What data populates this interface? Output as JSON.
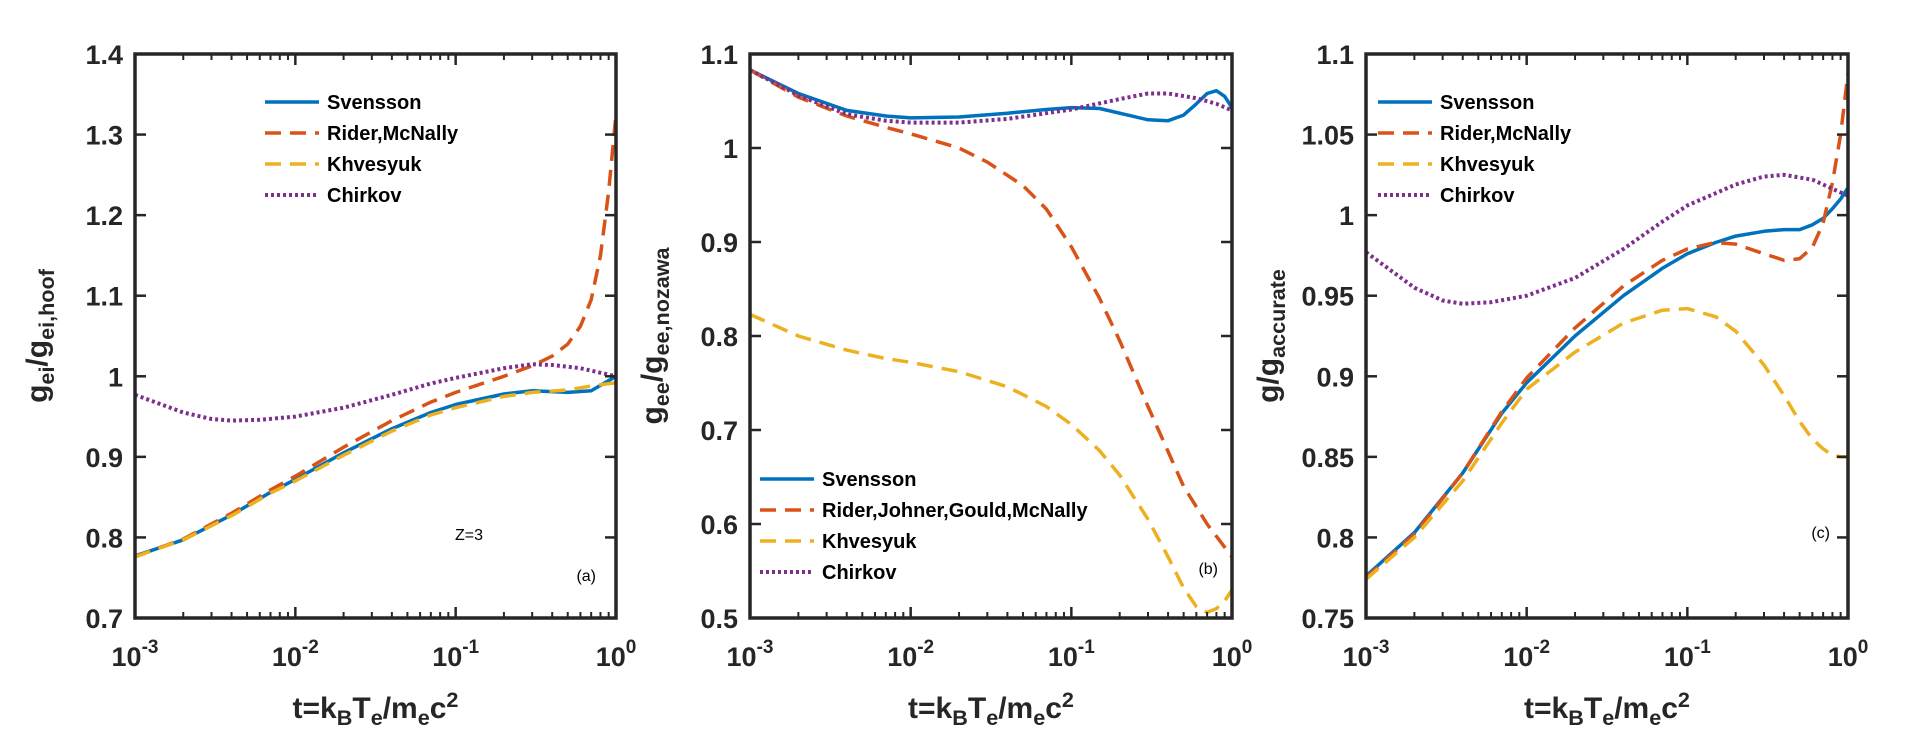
{
  "figure": {
    "colors": {
      "Svensson": "#0072BD",
      "Rider": "#D95319",
      "Khvesyuk": "#EDB120",
      "Chirkov": "#7E2F8E"
    }
  },
  "chart_data": [
    {
      "type": "line",
      "panel": "(a)",
      "xlabel": "t=k_B T_e/m_e c^2",
      "ylabel": "g_ei/g_ei,hoof",
      "xscale": "log",
      "xlim": [
        0.001,
        1
      ],
      "ylim": [
        0.7,
        1.4
      ],
      "xticks": [
        {
          "v": 0.001,
          "base": "10",
          "exp": "-3"
        },
        {
          "v": 0.01,
          "base": "10",
          "exp": "-2"
        },
        {
          "v": 0.1,
          "base": "10",
          "exp": "-1"
        },
        {
          "v": 1,
          "base": "10",
          "exp": "0"
        }
      ],
      "yticks": [
        0.7,
        0.8,
        0.9,
        1.0,
        1.1,
        1.2,
        1.3,
        1.4
      ],
      "ytick_labels": [
        "0.7",
        "0.8",
        "0.9",
        "1",
        "1.1",
        "1.2",
        "1.3",
        "1.4"
      ],
      "annotation": "Z=3",
      "legend": {
        "position": "top-center"
      },
      "series": [
        {
          "name": "Svensson",
          "style": "solid",
          "color": "#0072BD",
          "x": [
            0.001,
            0.002,
            0.004,
            0.007,
            0.01,
            0.02,
            0.04,
            0.07,
            0.1,
            0.2,
            0.3,
            0.5,
            0.7,
            1.0
          ],
          "y": [
            0.777,
            0.797,
            0.828,
            0.856,
            0.872,
            0.905,
            0.935,
            0.955,
            0.965,
            0.978,
            0.982,
            0.98,
            0.982,
            1.0
          ]
        },
        {
          "name": "Rider,McNally",
          "style": "dashed",
          "color": "#D95319",
          "x": [
            0.001,
            0.002,
            0.004,
            0.007,
            0.01,
            0.02,
            0.04,
            0.07,
            0.1,
            0.2,
            0.3,
            0.4,
            0.5,
            0.6,
            0.7,
            0.8,
            0.9,
            1.0
          ],
          "y": [
            0.776,
            0.798,
            0.83,
            0.859,
            0.876,
            0.912,
            0.945,
            0.968,
            0.98,
            1.0,
            1.013,
            1.025,
            1.04,
            1.062,
            1.095,
            1.15,
            1.23,
            1.325
          ]
        },
        {
          "name": "Khvesyuk",
          "style": "dashed",
          "color": "#EDB120",
          "x": [
            0.001,
            0.002,
            0.004,
            0.007,
            0.01,
            0.02,
            0.04,
            0.07,
            0.1,
            0.2,
            0.3,
            0.5,
            0.7,
            1.0
          ],
          "y": [
            0.776,
            0.797,
            0.827,
            0.855,
            0.87,
            0.902,
            0.932,
            0.952,
            0.961,
            0.975,
            0.98,
            0.983,
            0.988,
            0.992
          ]
        },
        {
          "name": "Chirkov",
          "style": "dotted",
          "color": "#7E2F8E",
          "x": [
            0.001,
            0.002,
            0.003,
            0.004,
            0.006,
            0.01,
            0.02,
            0.04,
            0.07,
            0.1,
            0.2,
            0.3,
            0.4,
            0.6,
            1.0
          ],
          "y": [
            0.977,
            0.955,
            0.947,
            0.945,
            0.946,
            0.95,
            0.961,
            0.977,
            0.991,
            0.998,
            1.01,
            1.015,
            1.014,
            1.01,
            1.0
          ]
        }
      ]
    },
    {
      "type": "line",
      "panel": "(b)",
      "xlabel": "t=k_B T_e/m_e c^2",
      "ylabel": "g_ee/g_ee,nozawa",
      "xscale": "log",
      "xlim": [
        0.001,
        1
      ],
      "ylim": [
        0.5,
        1.1
      ],
      "xticks": [
        {
          "v": 0.001,
          "base": "10",
          "exp": "-3"
        },
        {
          "v": 0.01,
          "base": "10",
          "exp": "-2"
        },
        {
          "v": 0.1,
          "base": "10",
          "exp": "-1"
        },
        {
          "v": 1,
          "base": "10",
          "exp": "0"
        }
      ],
      "yticks": [
        0.5,
        0.6,
        0.7,
        0.8,
        0.9,
        1.0,
        1.1
      ],
      "ytick_labels": [
        "0.5",
        "0.6",
        "0.7",
        "0.8",
        "0.9",
        "1",
        "1.1"
      ],
      "legend": {
        "position": "bottom-left"
      },
      "series": [
        {
          "name": "Svensson",
          "style": "solid",
          "color": "#0072BD",
          "x": [
            0.001,
            0.002,
            0.004,
            0.007,
            0.01,
            0.02,
            0.04,
            0.07,
            0.1,
            0.15,
            0.2,
            0.3,
            0.4,
            0.5,
            0.6,
            0.7,
            0.8,
            0.9,
            1.0
          ],
          "y": [
            1.083,
            1.058,
            1.04,
            1.034,
            1.032,
            1.033,
            1.037,
            1.041,
            1.043,
            1.042,
            1.037,
            1.03,
            1.029,
            1.035,
            1.047,
            1.058,
            1.061,
            1.055,
            1.043
          ]
        },
        {
          "name": "Rider,Johner,Gould,McNally",
          "style": "dashed",
          "color": "#D95319",
          "x": [
            0.001,
            0.002,
            0.004,
            0.007,
            0.01,
            0.02,
            0.03,
            0.05,
            0.07,
            0.1,
            0.15,
            0.2,
            0.3,
            0.5,
            0.7,
            1.0
          ],
          "y": [
            1.083,
            1.054,
            1.034,
            1.022,
            1.015,
            1.0,
            0.985,
            0.96,
            0.935,
            0.895,
            0.84,
            0.795,
            0.725,
            0.64,
            0.6,
            0.565
          ]
        },
        {
          "name": "Khvesyuk",
          "style": "dashed",
          "color": "#EDB120",
          "x": [
            0.001,
            0.002,
            0.004,
            0.007,
            0.01,
            0.02,
            0.04,
            0.07,
            0.1,
            0.15,
            0.2,
            0.3,
            0.4,
            0.5,
            0.6,
            0.7,
            0.8,
            0.9,
            1.0
          ],
          "y": [
            0.823,
            0.8,
            0.785,
            0.776,
            0.772,
            0.762,
            0.746,
            0.725,
            0.706,
            0.678,
            0.652,
            0.605,
            0.565,
            0.532,
            0.512,
            0.506,
            0.51,
            0.518,
            0.53
          ]
        },
        {
          "name": "Chirkov",
          "style": "dotted",
          "color": "#7E2F8E",
          "x": [
            0.001,
            0.002,
            0.004,
            0.007,
            0.01,
            0.02,
            0.04,
            0.07,
            0.1,
            0.2,
            0.3,
            0.4,
            0.6,
            0.8,
            1.0
          ],
          "y": [
            1.083,
            1.056,
            1.036,
            1.029,
            1.027,
            1.027,
            1.031,
            1.037,
            1.041,
            1.052,
            1.058,
            1.058,
            1.053,
            1.047,
            1.04
          ]
        }
      ]
    },
    {
      "type": "line",
      "panel": "(c)",
      "xlabel": "t=k_B T_e/m_e c^2",
      "ylabel": "g/g_accurate",
      "xscale": "log",
      "xlim": [
        0.001,
        1
      ],
      "ylim": [
        0.75,
        1.1
      ],
      "xticks": [
        {
          "v": 0.001,
          "base": "10",
          "exp": "-3"
        },
        {
          "v": 0.01,
          "base": "10",
          "exp": "-2"
        },
        {
          "v": 0.1,
          "base": "10",
          "exp": "-1"
        },
        {
          "v": 1,
          "base": "10",
          "exp": "0"
        }
      ],
      "yticks": [
        0.75,
        0.8,
        0.85,
        0.9,
        0.95,
        1.0,
        1.05,
        1.1
      ],
      "ytick_labels": [
        "0.75",
        "0.8",
        "0.85",
        "0.9",
        "0.95",
        "1",
        "1.05",
        "1.1"
      ],
      "legend": {
        "position": "top-left"
      },
      "series": [
        {
          "name": "Svensson",
          "style": "solid",
          "color": "#0072BD",
          "x": [
            0.001,
            0.002,
            0.004,
            0.007,
            0.01,
            0.02,
            0.04,
            0.07,
            0.1,
            0.15,
            0.2,
            0.3,
            0.4,
            0.5,
            0.6,
            0.7,
            0.8,
            0.9,
            1.0
          ],
          "y": [
            0.776,
            0.803,
            0.84,
            0.877,
            0.896,
            0.925,
            0.95,
            0.967,
            0.976,
            0.983,
            0.987,
            0.99,
            0.991,
            0.991,
            0.994,
            0.998,
            1.004,
            1.01,
            1.017
          ]
        },
        {
          "name": "Rider,McNally",
          "style": "dashed",
          "color": "#D95319",
          "x": [
            0.001,
            0.002,
            0.004,
            0.007,
            0.01,
            0.02,
            0.04,
            0.07,
            0.1,
            0.15,
            0.2,
            0.3,
            0.4,
            0.5,
            0.6,
            0.7,
            0.8,
            0.9,
            1.0
          ],
          "y": [
            0.775,
            0.802,
            0.84,
            0.878,
            0.899,
            0.93,
            0.956,
            0.972,
            0.979,
            0.983,
            0.982,
            0.976,
            0.972,
            0.973,
            0.98,
            0.995,
            1.02,
            1.05,
            1.088
          ]
        },
        {
          "name": "Khvesyuk",
          "style": "dashed",
          "color": "#EDB120",
          "x": [
            0.001,
            0.002,
            0.004,
            0.007,
            0.01,
            0.02,
            0.04,
            0.07,
            0.1,
            0.15,
            0.2,
            0.3,
            0.4,
            0.5,
            0.6,
            0.7,
            0.8,
            0.9,
            1.0
          ],
          "y": [
            0.774,
            0.8,
            0.835,
            0.871,
            0.892,
            0.915,
            0.933,
            0.941,
            0.942,
            0.937,
            0.928,
            0.907,
            0.888,
            0.872,
            0.861,
            0.855,
            0.851,
            0.85,
            0.85
          ]
        },
        {
          "name": "Chirkov",
          "style": "dotted",
          "color": "#7E2F8E",
          "x": [
            0.001,
            0.002,
            0.003,
            0.004,
            0.006,
            0.01,
            0.02,
            0.04,
            0.07,
            0.1,
            0.2,
            0.3,
            0.4,
            0.6,
            1.0
          ],
          "y": [
            0.977,
            0.955,
            0.947,
            0.945,
            0.946,
            0.95,
            0.961,
            0.979,
            0.996,
            1.006,
            1.019,
            1.024,
            1.025,
            1.022,
            1.012
          ]
        }
      ]
    }
  ]
}
